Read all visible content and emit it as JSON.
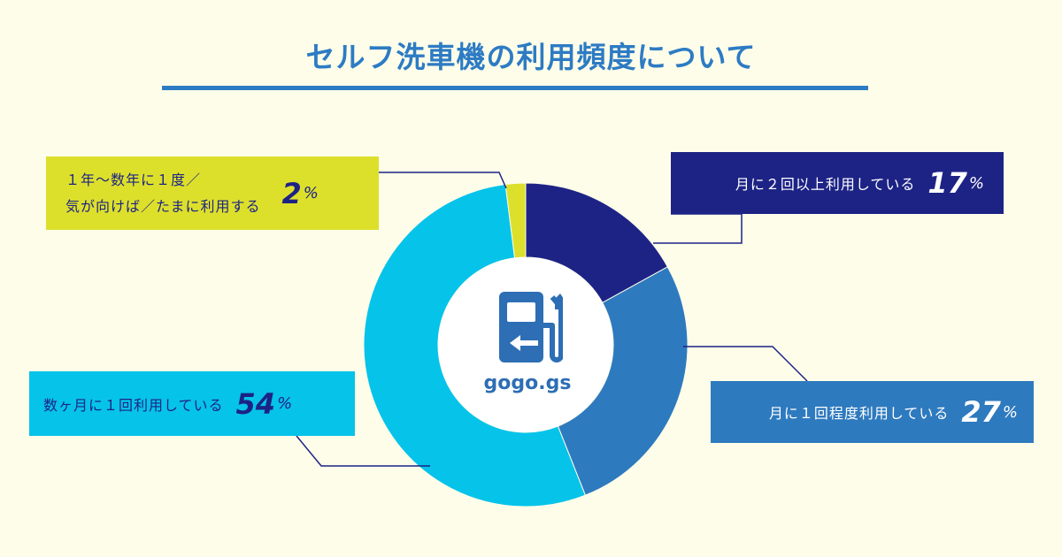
{
  "title": "セルフ洗車機の利用頻度について",
  "logo_text": "gogo.gs",
  "logo_icon": "gas-pump-icon",
  "colors": {
    "background": "#fdfde9",
    "title": "#2d7bc4",
    "monthly2": "#1d2385",
    "monthly1": "#2e7abf",
    "several": "#06c3ea",
    "rare": "#dde02b"
  },
  "chart_data": {
    "type": "pie",
    "title": "セルフ洗車機の利用頻度について",
    "unit": "%",
    "slices": [
      {
        "label": "月に２回以上利用している",
        "value": 17,
        "color": "#1d2385"
      },
      {
        "label": "月に１回程度利用している",
        "value": 27,
        "color": "#2e7abf"
      },
      {
        "label": "数ヶ月に１回利用している",
        "value": 54,
        "color": "#06c3ea"
      },
      {
        "label": "１年～数年に１度／気が向けば／たまに利用する",
        "value": 2,
        "color": "#dde02b"
      }
    ]
  },
  "labels": {
    "monthly2": {
      "text": "月に２回以上利用している",
      "value": "17",
      "unit": "%"
    },
    "monthly1": {
      "text": "月に１回程度利用している",
      "value": "27",
      "unit": "%"
    },
    "several": {
      "text": "数ヶ月に１回利用している",
      "value": "54",
      "unit": "%"
    },
    "rare": {
      "line1": "１年～数年に１度／",
      "line2": "気が向けば／たまに利用する",
      "value": "2",
      "unit": "%"
    }
  }
}
